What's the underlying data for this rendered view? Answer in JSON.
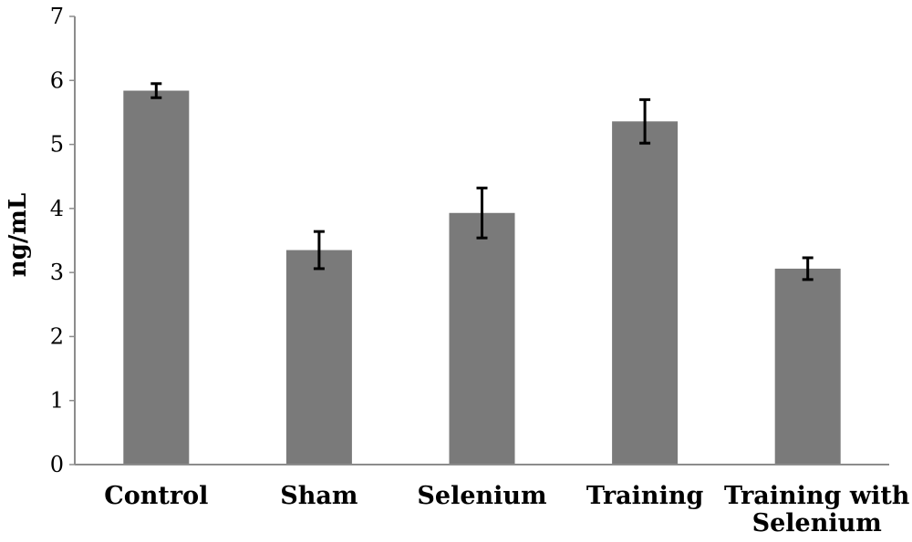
{
  "chart_data": {
    "type": "bar",
    "title": "",
    "xlabel": "",
    "ylabel": "ng/mL",
    "ylim": [
      0,
      7
    ],
    "yticks": [
      "0",
      "1",
      "2",
      "3",
      "4",
      "5",
      "6",
      "7"
    ],
    "categories": [
      [
        "Control"
      ],
      [
        "Sham"
      ],
      [
        "Selenium"
      ],
      [
        "Training"
      ],
      [
        "Training with",
        "Selenium"
      ]
    ],
    "values": [
      5.84,
      3.35,
      3.93,
      5.36,
      3.06
    ],
    "errors": [
      0.11,
      0.29,
      0.39,
      0.34,
      0.17
    ],
    "grid": false,
    "legend": "none",
    "colors": {
      "bar": "#7a7a7a",
      "axis": "#8c8c8c",
      "error_bar": "#000000"
    }
  }
}
